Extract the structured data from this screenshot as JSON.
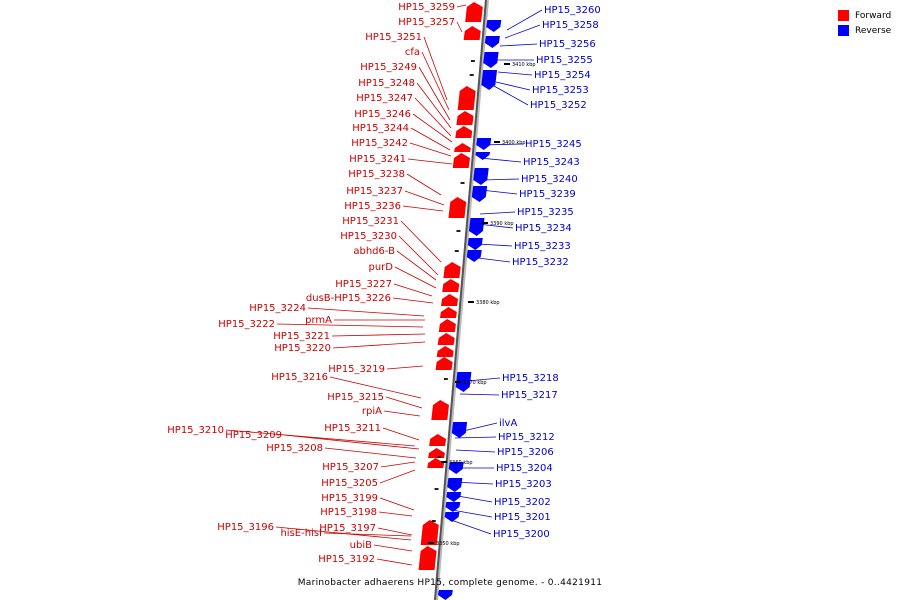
{
  "legend": {
    "forward_label": "Forward",
    "reverse_label": "Reverse",
    "forward_color": "#ff0000",
    "reverse_color": "#0000ff"
  },
  "caption": "Marinobacter adhaerens HP15, complete genome. - 0..4421911",
  "label_colors": {
    "forward": "#cc0000",
    "reverse": "#0000cc"
  },
  "scale_labels": [
    "3410 kbp",
    "3400 kbp",
    "3390 kbp",
    "3380 kbp",
    "3370 kbp",
    "3360 kbp",
    "3350 kbp"
  ],
  "forward_labels": [
    "HP15_3259",
    "HP15_3257",
    "HP15_3251",
    "cfa",
    "HP15_3249",
    "HP15_3248",
    "HP15_3247",
    "HP15_3246",
    "HP15_3244",
    "HP15_3242",
    "HP15_3241",
    "HP15_3238",
    "HP15_3237",
    "HP15_3236",
    "HP15_3231",
    "HP15_3230",
    "abhd6-B",
    "purD",
    "HP15_3227",
    "dusB-HP15_3226",
    "HP15_3224",
    "prmA",
    "HP15_3222",
    "HP15_3221",
    "HP15_3220",
    "HP15_3219",
    "HP15_3216",
    "HP15_3215",
    "rpiA",
    "HP15_3211",
    "HP15_3210",
    "HP15_3209",
    "HP15_3208",
    "HP15_3207",
    "HP15_3205",
    "HP15_3199",
    "HP15_3198",
    "HP15_3197",
    "HP15_3196",
    "hisE-hisI",
    "ubiB",
    "HP15_3192"
  ],
  "reverse_labels": [
    "HP15_3260",
    "HP15_3258",
    "HP15_3256",
    "HP15_3255",
    "HP15_3254",
    "HP15_3253",
    "HP15_3252",
    "HP15_3245",
    "HP15_3243",
    "HP15_3240",
    "HP15_3239",
    "HP15_3235",
    "HP15_3234",
    "HP15_3233",
    "HP15_3232",
    "HP15_3218",
    "HP15_3217",
    "ilvA",
    "HP15_3212",
    "HP15_3206",
    "HP15_3204",
    "HP15_3203",
    "HP15_3202",
    "HP15_3201",
    "HP15_3200"
  ]
}
